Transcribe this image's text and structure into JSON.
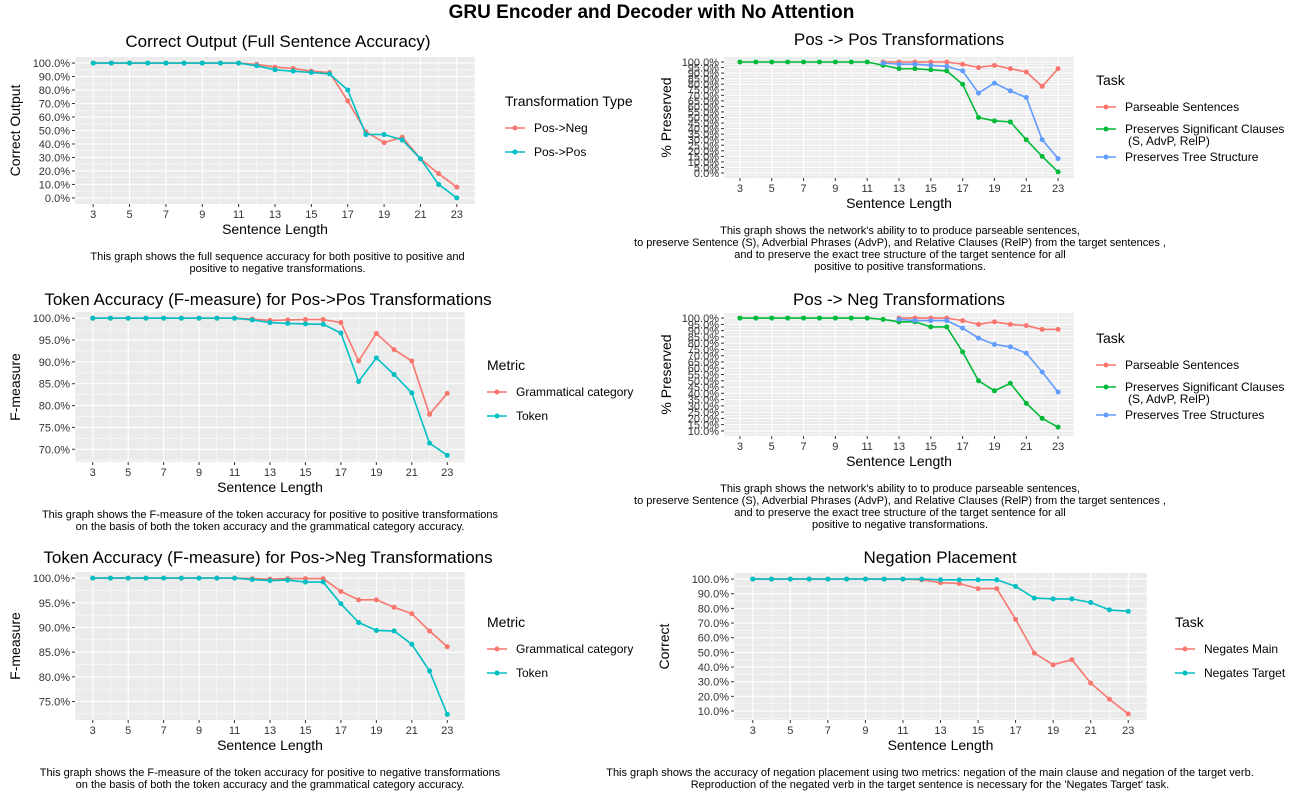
{
  "page": {
    "title": "GRU Encoder and Decoder with No Attention"
  },
  "colors": {
    "red": "#F8766D",
    "green": "#00BA38",
    "blue": "#619CFF",
    "teal": "#00BFC4",
    "panel_bg": "#EBEBEB",
    "grid": "#ffffff"
  },
  "chart_data": [
    {
      "type": "line",
      "title": "Correct Output (Full Sentence Accuracy)",
      "xlabel": "Sentence Length",
      "ylabel": "Correct Output",
      "xlim": [
        3,
        23
      ],
      "ylim": [
        0,
        100
      ],
      "x_ticks": [
        3,
        5,
        7,
        9,
        11,
        13,
        15,
        17,
        19,
        21,
        23
      ],
      "y_ticks": [
        0,
        10,
        20,
        30,
        40,
        50,
        60,
        70,
        80,
        90,
        100
      ],
      "y_tick_labels": [
        "0.0%",
        "10.0%",
        "20.0%",
        "30.0%",
        "40.0%",
        "50.0%",
        "60.0%",
        "70.0%",
        "80.0%",
        "90.0%",
        "100.0%"
      ],
      "legend_title": "Transformation Type",
      "x": [
        3,
        4,
        5,
        6,
        7,
        8,
        9,
        10,
        11,
        12,
        13,
        14,
        15,
        16,
        17,
        18,
        19,
        20,
        21,
        22,
        23
      ],
      "series": [
        {
          "name": "Pos->Neg",
          "color": "#F8766D",
          "values": [
            100,
            100,
            100,
            100,
            100,
            100,
            100,
            100,
            100,
            99,
            97,
            96,
            94,
            93,
            72,
            49,
            41,
            45,
            29,
            18,
            8
          ]
        },
        {
          "name": "Pos->Pos",
          "color": "#00BFC4",
          "values": [
            100,
            100,
            100,
            100,
            100,
            100,
            100,
            100,
            100,
            98,
            95,
            94,
            93,
            92,
            80,
            47,
            47,
            43,
            29,
            10,
            0
          ]
        }
      ],
      "caption": "This graph shows the full sequence accuracy for both positive to positive and\npositive to negative transformations."
    },
    {
      "type": "line",
      "title": "Pos -> Pos Transformations",
      "xlabel": "Sentence Length",
      "ylabel": "% Preserved",
      "xlim": [
        3,
        23
      ],
      "ylim": [
        0,
        100
      ],
      "x_ticks": [
        3,
        5,
        7,
        9,
        11,
        13,
        15,
        17,
        19,
        21,
        23
      ],
      "y_ticks": [
        0,
        5,
        10,
        15,
        20,
        25,
        30,
        35,
        40,
        45,
        50,
        55,
        60,
        65,
        70,
        75,
        80,
        85,
        90,
        95,
        100
      ],
      "y_tick_labels": [
        "0.0%",
        "5.0%",
        "10.0%",
        "15.0%",
        "20.0%",
        "25.0%",
        "30.0%",
        "35.0%",
        "40.0%",
        "45.0%",
        "50.0%",
        "55.0%",
        "60.0%",
        "65.0%",
        "70.0%",
        "75.0%",
        "80.0%",
        "85.0%",
        "90.0%",
        "95.0%",
        "100.0%"
      ],
      "legend_title": "Task",
      "series": [
        {
          "name": "Parseable Sentences",
          "color": "#F8766D",
          "x": [
            12,
            13,
            14,
            15,
            16,
            17,
            18,
            19,
            20,
            21,
            22,
            23
          ],
          "values": [
            100,
            100,
            100,
            100,
            100,
            98,
            95,
            97,
            94,
            91,
            78,
            94
          ]
        },
        {
          "name": "Preserves Significant Clauses\n(S, AdvP, RelP)",
          "color": "#00BA38",
          "x": [
            3,
            4,
            5,
            6,
            7,
            8,
            9,
            10,
            11,
            12,
            13,
            14,
            15,
            16,
            17,
            18,
            19,
            20,
            21,
            22,
            23
          ],
          "values": [
            100,
            100,
            100,
            100,
            100,
            100,
            100,
            100,
            100,
            97,
            94,
            94,
            93,
            92,
            80,
            50,
            47,
            46,
            30,
            15,
            1
          ]
        },
        {
          "name": "Preserves Tree Structure",
          "color": "#619CFF",
          "x": [
            12,
            13,
            14,
            15,
            16,
            17,
            18,
            19,
            20,
            21,
            22,
            23
          ],
          "values": [
            99,
            98,
            98,
            97,
            96,
            92,
            72,
            81,
            74,
            68,
            30,
            13
          ]
        }
      ],
      "caption": "This graph shows the network's ability to to produce parseable sentences,\nto preserve Sentence (S), Adverbial Phrases (AdvP), and Relative Clauses (RelP) from the target sentences ,\nand to preserve the exact tree structure of the target sentence for all\npositive to positive transformations."
    },
    {
      "type": "line",
      "title": "Token Accuracy (F-measure) for Pos->Pos Transformations",
      "xlabel": "Sentence Length",
      "ylabel": "F-measure",
      "xlim": [
        3,
        23
      ],
      "ylim": [
        68.5,
        100
      ],
      "x_ticks": [
        3,
        5,
        7,
        9,
        11,
        13,
        15,
        17,
        19,
        21,
        23
      ],
      "y_ticks": [
        70,
        75,
        80,
        85,
        90,
        95,
        100
      ],
      "y_tick_labels": [
        "70.0%",
        "75.0%",
        "80.0%",
        "85.0%",
        "90.0%",
        "95.0%",
        "100.0%"
      ],
      "legend_title": "Metric",
      "x": [
        3,
        4,
        5,
        6,
        7,
        8,
        9,
        10,
        11,
        12,
        13,
        14,
        15,
        16,
        17,
        18,
        19,
        20,
        21,
        22,
        23
      ],
      "series": [
        {
          "name": "Grammatical category",
          "color": "#F8766D",
          "values": [
            100,
            100,
            100,
            100,
            100,
            100,
            100,
            100,
            100,
            99.8,
            99.5,
            99.6,
            99.7,
            99.7,
            99,
            90.2,
            96.5,
            92.8,
            90.2,
            78,
            82.8
          ]
        },
        {
          "name": "Token",
          "color": "#00BFC4",
          "values": [
            100,
            100,
            100,
            100,
            100,
            100,
            100,
            100,
            100,
            99.6,
            99,
            98.8,
            98.7,
            98.6,
            96.6,
            85.5,
            90.9,
            87.1,
            82.9,
            71.4,
            68.6
          ]
        }
      ],
      "caption": "This graph shows the F-measure of the token accuracy for positive to positive transformations\non the basis of both the token accuracy and the grammatical category accuracy."
    },
    {
      "type": "line",
      "title": "Pos -> Neg Transformations",
      "xlabel": "Sentence Length",
      "ylabel": "% Preserved",
      "xlim": [
        3,
        23
      ],
      "ylim": [
        10,
        100
      ],
      "x_ticks": [
        3,
        5,
        7,
        9,
        11,
        13,
        15,
        17,
        19,
        21,
        23
      ],
      "y_ticks": [
        10,
        15,
        20,
        25,
        30,
        35,
        40,
        45,
        50,
        55,
        60,
        65,
        70,
        75,
        80,
        85,
        90,
        95,
        100
      ],
      "y_tick_labels": [
        "10.0%",
        "15.0%",
        "20.0%",
        "25.0%",
        "30.0%",
        "35.0%",
        "40.0%",
        "45.0%",
        "50.0%",
        "55.0%",
        "60.0%",
        "65.0%",
        "70.0%",
        "75.0%",
        "80.0%",
        "85.0%",
        "90.0%",
        "95.0%",
        "100.0%"
      ],
      "legend_title": "Task",
      "series": [
        {
          "name": "Parseable Sentences",
          "color": "#F8766D",
          "x": [
            13,
            14,
            15,
            16,
            17,
            18,
            19,
            20,
            21,
            22,
            23
          ],
          "values": [
            100,
            100,
            100,
            100,
            98,
            95,
            97,
            95,
            94,
            91,
            91
          ]
        },
        {
          "name": "Preserves Significant Clauses\n(S, AdvP, RelP)",
          "color": "#00BA38",
          "x": [
            3,
            4,
            5,
            6,
            7,
            8,
            9,
            10,
            11,
            12,
            13,
            14,
            15,
            16,
            17,
            18,
            19,
            20,
            21,
            22,
            23
          ],
          "values": [
            100,
            100,
            100,
            100,
            100,
            100,
            100,
            100,
            100,
            99,
            97,
            97,
            93,
            93,
            73,
            50,
            42,
            48,
            32,
            20,
            13
          ]
        },
        {
          "name": "Preserves Tree Structures",
          "color": "#619CFF",
          "x": [
            13,
            14,
            15,
            16,
            17,
            18,
            19,
            20,
            21,
            22,
            23
          ],
          "values": [
            99,
            98,
            98,
            98,
            92,
            84,
            79,
            77,
            72,
            57,
            41
          ]
        }
      ],
      "caption": "This graph shows the network's ability to to produce parseable sentences,\nto preserve Sentence (S), Adverbial Phrases (AdvP), and Relative Clauses (RelP) from the target sentences ,\nand to preserve the exact tree structure of the target sentence for all\npositive to negative transformations."
    },
    {
      "type": "line",
      "title": "Token Accuracy (F-measure) for Pos->Neg Transformations",
      "xlabel": "Sentence Length",
      "ylabel": "F-measure",
      "xlim": [
        3,
        23
      ],
      "ylim": [
        72.5,
        100
      ],
      "x_ticks": [
        3,
        5,
        7,
        9,
        11,
        13,
        15,
        17,
        19,
        21,
        23
      ],
      "y_ticks": [
        75,
        80,
        85,
        90,
        95,
        100
      ],
      "y_tick_labels": [
        "75.0%",
        "80.0%",
        "85.0%",
        "90.0%",
        "95.0%",
        "100.0%"
      ],
      "legend_title": "Metric",
      "x": [
        3,
        4,
        5,
        6,
        7,
        8,
        9,
        10,
        11,
        12,
        13,
        14,
        15,
        16,
        17,
        18,
        19,
        20,
        21,
        22,
        23
      ],
      "series": [
        {
          "name": "Grammatical category",
          "color": "#F8766D",
          "values": [
            100,
            100,
            100,
            100,
            100,
            100,
            100,
            100,
            100,
            99.9,
            99.8,
            99.9,
            99.9,
            99.9,
            97.3,
            95.6,
            95.6,
            94.1,
            92.8,
            89.3,
            86.1
          ]
        },
        {
          "name": "Token",
          "color": "#00BFC4",
          "values": [
            100,
            100,
            100,
            100,
            100,
            100,
            100,
            100,
            100,
            99.7,
            99.5,
            99.6,
            99.2,
            99.2,
            94.8,
            91,
            89.4,
            89.3,
            86.6,
            81.2,
            72.4
          ]
        }
      ],
      "caption": "This graph shows the F-measure of the token accuracy for positive to negative transformations\non the basis of both the token accuracy and the grammatical category accuracy."
    },
    {
      "type": "line",
      "title": "Negation Placement",
      "xlabel": "Sentence Length",
      "ylabel": "Correct",
      "xlim": [
        3,
        23
      ],
      "ylim": [
        8,
        100
      ],
      "x_ticks": [
        3,
        5,
        7,
        9,
        11,
        13,
        15,
        17,
        19,
        21,
        23
      ],
      "y_ticks": [
        10,
        20,
        30,
        40,
        50,
        60,
        70,
        80,
        90,
        100
      ],
      "y_tick_labels": [
        "10.0%",
        "20.0%",
        "30.0%",
        "40.0%",
        "50.0%",
        "60.0%",
        "70.0%",
        "80.0%",
        "90.0%",
        "100.0%"
      ],
      "legend_title": "Task",
      "x": [
        3,
        4,
        5,
        6,
        7,
        8,
        9,
        10,
        11,
        12,
        13,
        14,
        15,
        16,
        17,
        18,
        19,
        20,
        21,
        22,
        23
      ],
      "series": [
        {
          "name": "Negates Main",
          "color": "#F8766D",
          "values": [
            100,
            100,
            100,
            100,
            100,
            100,
            100,
            100,
            100,
            99.5,
            97.5,
            97,
            93.5,
            93.5,
            72.5,
            49.5,
            41.5,
            45,
            29,
            18,
            8
          ]
        },
        {
          "name": "Negates Target",
          "color": "#00BFC4",
          "values": [
            100,
            100,
            100,
            100,
            100,
            100,
            100,
            100,
            100,
            100,
            99.5,
            99.5,
            99.5,
            99.5,
            95,
            87,
            86.5,
            86.5,
            84,
            79,
            78
          ]
        }
      ],
      "caption": "This graph shows the accuracy of negation placement using two metrics: negation of the main clause and negation of the target verb.\nReproduction of the negated verb in the target sentence is necessary for the 'Negates Target' task."
    }
  ]
}
